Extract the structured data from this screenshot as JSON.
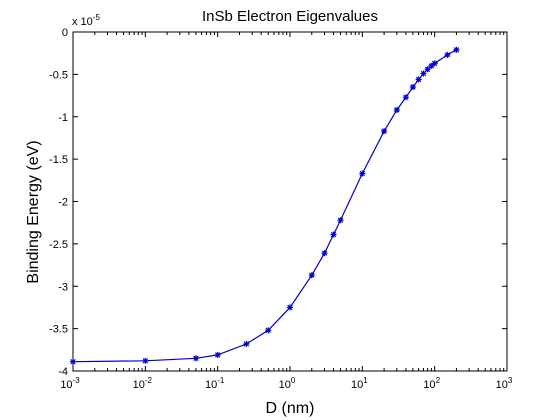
{
  "chart_data": {
    "type": "line",
    "title": "InSb Electron Eigenvalues",
    "xlabel": "D (nm)",
    "ylabel": "Binding Energy (eV)",
    "y_multiplier": "x 10",
    "y_multiplier_exponent": "-5",
    "x_scale": "log",
    "xlim": [
      0.001,
      1000
    ],
    "ylim": [
      -4.0,
      0
    ],
    "y_units_note": "tick values shown in units of 1e-5 eV",
    "x_ticks": [
      {
        "base": "10",
        "exp": "-3",
        "value": 0.001
      },
      {
        "base": "10",
        "exp": "-2",
        "value": 0.01
      },
      {
        "base": "10",
        "exp": "-1",
        "value": 0.1
      },
      {
        "base": "10",
        "exp": "0",
        "value": 1
      },
      {
        "base": "10",
        "exp": "1",
        "value": 10
      },
      {
        "base": "10",
        "exp": "2",
        "value": 100
      },
      {
        "base": "10",
        "exp": "3",
        "value": 1000
      }
    ],
    "y_ticks": [
      {
        "label": "0",
        "value": 0
      },
      {
        "label": "-0.5",
        "value": -0.5
      },
      {
        "label": "-1",
        "value": -1.0
      },
      {
        "label": "-1.5",
        "value": -1.5
      },
      {
        "label": "-2",
        "value": -2.0
      },
      {
        "label": "-2.5",
        "value": -2.5
      },
      {
        "label": "-3",
        "value": -3.0
      },
      {
        "label": "-3.5",
        "value": -3.5
      },
      {
        "label": "-4",
        "value": -4.0
      }
    ],
    "grid": false,
    "series": [
      {
        "color": "#0000cc",
        "marker": "asterisk",
        "x": [
          0.001,
          0.01,
          0.05,
          0.1,
          0.25,
          0.5,
          1,
          2,
          3,
          4,
          5,
          10,
          20,
          30,
          40,
          50,
          60,
          70,
          80,
          90,
          100,
          150,
          200
        ],
        "y": [
          -3.89,
          -3.88,
          -3.85,
          -3.81,
          -3.68,
          -3.52,
          -3.25,
          -2.87,
          -2.61,
          -2.39,
          -2.22,
          -1.67,
          -1.17,
          -0.92,
          -0.77,
          -0.65,
          -0.56,
          -0.49,
          -0.44,
          -0.4,
          -0.37,
          -0.27,
          -0.21
        ]
      }
    ]
  }
}
